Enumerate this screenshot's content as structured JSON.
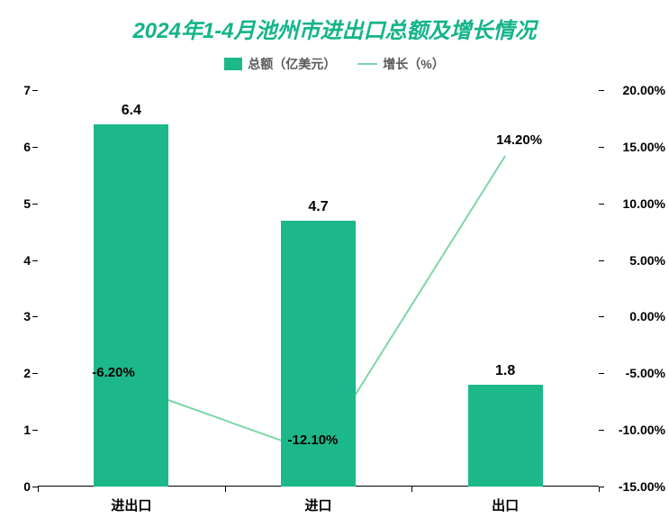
{
  "title": {
    "text": "2024年1-4月池州市进出口总额及增长情况",
    "color": "#14b489",
    "fontsize": 24
  },
  "legend": {
    "bar_label": "总额（亿美元）",
    "line_label": "增长（%）",
    "fontsize": 14,
    "label_color": "#595959",
    "bar_swatch_color": "#1cb88a",
    "line_swatch_color": "#7ed6a8"
  },
  "chart": {
    "type": "bar+line",
    "background_color": "#ffffff",
    "categories": [
      "进出口",
      "进口",
      "出口"
    ],
    "bars": {
      "values": [
        6.4,
        4.7,
        1.8
      ],
      "labels": [
        "6.4",
        "4.7",
        "1.8"
      ],
      "color": "#1cb88a",
      "width_ratio": 0.4,
      "label_fontsize": 16,
      "label_color": "#000000"
    },
    "line": {
      "values": [
        -6.2,
        -12.1,
        14.2
      ],
      "labels": [
        "-6.20%",
        "-12.10%",
        "14.20%"
      ],
      "color": "#7ed6a8",
      "width": 2,
      "label_fontsize": 15,
      "label_color": "#000000"
    },
    "y_left": {
      "min": 0,
      "max": 7,
      "ticks": [
        0,
        1,
        2,
        3,
        4,
        5,
        6,
        7
      ],
      "tick_labels": [
        "0",
        "1",
        "2",
        "3",
        "4",
        "5",
        "6",
        "7"
      ],
      "fontsize": 14,
      "color": "#000000"
    },
    "y_right": {
      "min": -15,
      "max": 20,
      "ticks": [
        -15,
        -10,
        -5,
        0,
        5,
        10,
        15,
        20
      ],
      "tick_labels": [
        "-15.00%",
        "-10.00%",
        "-5.00%",
        "0.00%",
        "5.00%",
        "10.00%",
        "15.00%",
        "20.00%"
      ],
      "fontsize": 14,
      "color": "#000000"
    },
    "x_axis": {
      "fontsize": 15,
      "color": "#000000"
    }
  }
}
